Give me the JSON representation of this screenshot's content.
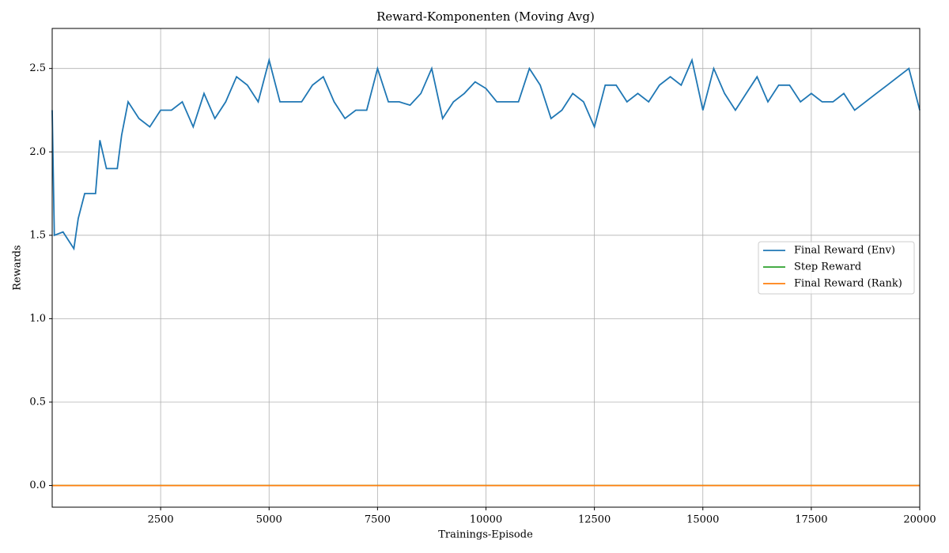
{
  "chart_data": {
    "type": "line",
    "title": "Reward-Komponenten (Moving Avg)",
    "xlabel": "Trainings-Episode",
    "ylabel": "Rewards",
    "xlim": [
      0,
      20000
    ],
    "ylim": [
      -0.13,
      2.74
    ],
    "xticks": [
      2500,
      5000,
      7500,
      10000,
      12500,
      15000,
      17500,
      20000
    ],
    "yticks": [
      {
        "value": 0,
        "label": "0.0"
      },
      0.5,
      {
        "value": 1,
        "label": "1.0"
      },
      1.5,
      {
        "value": 2,
        "label": "2.0"
      },
      2.5
    ],
    "grid": true,
    "legend": "center right",
    "series": [
      {
        "name": "Final Reward (Env)",
        "color": "#1f77b4",
        "x": [
          0,
          50,
          250,
          500,
          600,
          750,
          1000,
          1100,
          1250,
          1500,
          1600,
          1750,
          2000,
          2250,
          2500,
          2750,
          3000,
          3250,
          3500,
          3750,
          4000,
          4250,
          4500,
          4750,
          5000,
          5250,
          5500,
          5750,
          6000,
          6250,
          6500,
          6750,
          7000,
          7250,
          7500,
          7750,
          8000,
          8250,
          8500,
          8750,
          9000,
          9250,
          9500,
          9750,
          10000,
          10250,
          10500,
          10750,
          11000,
          11250,
          11500,
          11750,
          12000,
          12250,
          12500,
          12750,
          13000,
          13250,
          13500,
          13750,
          14000,
          14250,
          14500,
          14750,
          15000,
          15250,
          15500,
          15750,
          16000,
          16250,
          16500,
          16750,
          17000,
          17250,
          17500,
          17750,
          18000,
          18250,
          18500,
          18750,
          19000,
          19250,
          19500,
          19750,
          20000
        ],
        "values": [
          2.25,
          1.5,
          1.52,
          1.42,
          1.6,
          1.75,
          1.75,
          2.07,
          1.9,
          1.9,
          2.1,
          2.3,
          2.2,
          2.15,
          2.25,
          2.25,
          2.3,
          2.15,
          2.35,
          2.2,
          2.3,
          2.45,
          2.4,
          2.3,
          2.55,
          2.3,
          2.3,
          2.3,
          2.4,
          2.45,
          2.3,
          2.2,
          2.25,
          2.25,
          2.5,
          2.3,
          2.3,
          2.28,
          2.35,
          2.5,
          2.2,
          2.3,
          2.35,
          2.42,
          2.38,
          2.3,
          2.3,
          2.3,
          2.5,
          2.4,
          2.2,
          2.25,
          2.35,
          2.3,
          2.15,
          2.4,
          2.4,
          2.3,
          2.35,
          2.3,
          2.4,
          2.45,
          2.4,
          2.55,
          2.25,
          2.5,
          2.35,
          2.25,
          2.35,
          2.45,
          2.3,
          2.4,
          2.4,
          2.3,
          2.35,
          2.3,
          2.3,
          2.35,
          2.25,
          2.3,
          2.35,
          2.4,
          2.45,
          2.5,
          2.25
        ]
      },
      {
        "name": "Step Reward",
        "color": "#2ca02c",
        "x": [
          0,
          20000
        ],
        "values": [
          0,
          0
        ]
      },
      {
        "name": "Final Reward (Rank)",
        "color": "#ff7f0e",
        "x": [
          0,
          20000
        ],
        "values": [
          0,
          0
        ]
      }
    ]
  }
}
